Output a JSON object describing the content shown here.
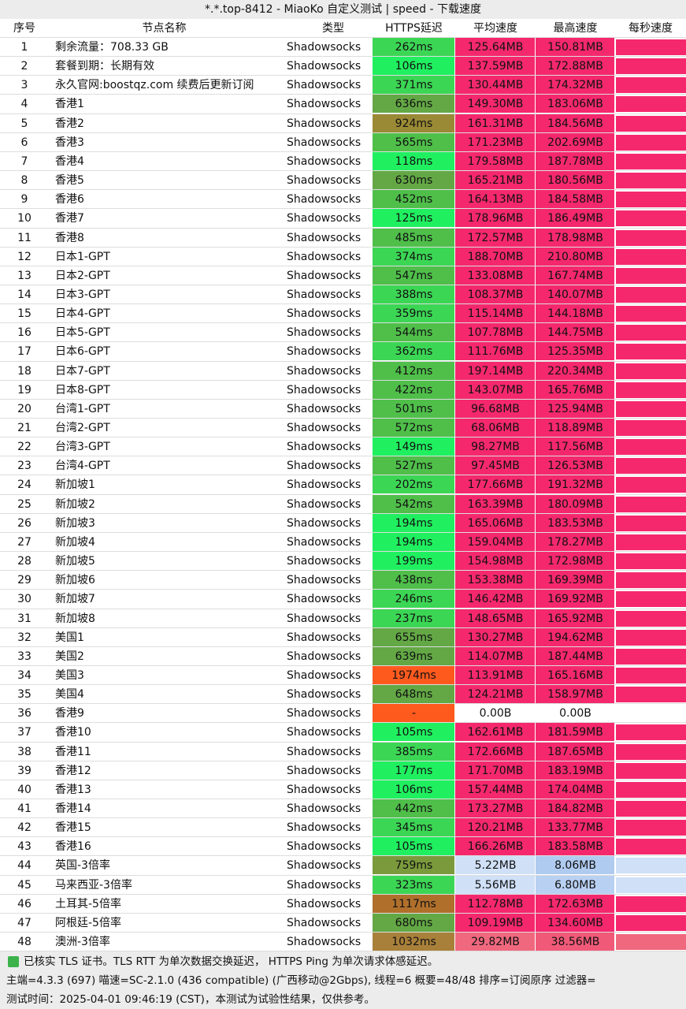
{
  "title": "*.*.top-8412 - MiaoKo 自定义测试 | speed - 下载速度",
  "table": {
    "headers": [
      "序号",
      "节点名称",
      "类型",
      "HTTPS延迟",
      "平均速度",
      "最高速度",
      "每秒速度"
    ],
    "rows": [
      {
        "cells": [
          "1",
          "剩余流量：708.33 GB",
          "Shadowsocks",
          "262ms",
          "125.64MB",
          "150.81MB"
        ],
        "bg": [
          "#3cd655",
          "#f5286e",
          "#f5286e"
        ]
      },
      {
        "cells": [
          "2",
          "套餐到期：长期有效",
          "Shadowsocks",
          "106ms",
          "137.59MB",
          "172.88MB"
        ],
        "bg": [
          "#20f060",
          "#f5286e",
          "#f5286e"
        ]
      },
      {
        "cells": [
          "3",
          "永久官网:boostqz.com 续费后更新订阅",
          "Shadowsocks",
          "371ms",
          "130.44MB",
          "174.32MB"
        ],
        "bg": [
          "#3cd655",
          "#f5286e",
          "#f5286e"
        ]
      },
      {
        "cells": [
          "4",
          "香港1",
          "Shadowsocks",
          "636ms",
          "149.30MB",
          "183.06MB"
        ],
        "bg": [
          "#63a845",
          "#f5286e",
          "#f5286e"
        ]
      },
      {
        "cells": [
          "5",
          "香港2",
          "Shadowsocks",
          "924ms",
          "161.31MB",
          "184.56MB"
        ],
        "bg": [
          "#9a8a35",
          "#f5286e",
          "#f5286e"
        ]
      },
      {
        "cells": [
          "6",
          "香港3",
          "Shadowsocks",
          "565ms",
          "171.23MB",
          "202.69MB"
        ],
        "bg": [
          "#4fbf4a",
          "#f5286e",
          "#f5286e"
        ]
      },
      {
        "cells": [
          "7",
          "香港4",
          "Shadowsocks",
          "118ms",
          "179.58MB",
          "187.78MB"
        ],
        "bg": [
          "#20f060",
          "#f5286e",
          "#f5286e"
        ]
      },
      {
        "cells": [
          "8",
          "香港5",
          "Shadowsocks",
          "630ms",
          "165.21MB",
          "180.56MB"
        ],
        "bg": [
          "#63a845",
          "#f5286e",
          "#f5286e"
        ]
      },
      {
        "cells": [
          "9",
          "香港6",
          "Shadowsocks",
          "452ms",
          "164.13MB",
          "184.58MB"
        ],
        "bg": [
          "#4fbf4a",
          "#f5286e",
          "#f5286e"
        ]
      },
      {
        "cells": [
          "10",
          "香港7",
          "Shadowsocks",
          "125ms",
          "178.96MB",
          "186.49MB"
        ],
        "bg": [
          "#20f060",
          "#f5286e",
          "#f5286e"
        ]
      },
      {
        "cells": [
          "11",
          "香港8",
          "Shadowsocks",
          "485ms",
          "172.57MB",
          "178.98MB"
        ],
        "bg": [
          "#4fbf4a",
          "#f5286e",
          "#f5286e"
        ]
      },
      {
        "cells": [
          "12",
          "日本1-GPT",
          "Shadowsocks",
          "374ms",
          "188.70MB",
          "210.80MB"
        ],
        "bg": [
          "#3cd655",
          "#f5286e",
          "#f5286e"
        ]
      },
      {
        "cells": [
          "13",
          "日本2-GPT",
          "Shadowsocks",
          "547ms",
          "133.08MB",
          "167.74MB"
        ],
        "bg": [
          "#4fbf4a",
          "#f5286e",
          "#f5286e"
        ]
      },
      {
        "cells": [
          "14",
          "日本3-GPT",
          "Shadowsocks",
          "388ms",
          "108.37MB",
          "140.07MB"
        ],
        "bg": [
          "#3cd655",
          "#f5286e",
          "#f5286e"
        ]
      },
      {
        "cells": [
          "15",
          "日本4-GPT",
          "Shadowsocks",
          "359ms",
          "115.14MB",
          "144.18MB"
        ],
        "bg": [
          "#3cd655",
          "#f5286e",
          "#f5286e"
        ]
      },
      {
        "cells": [
          "16",
          "日本5-GPT",
          "Shadowsocks",
          "544ms",
          "107.78MB",
          "144.75MB"
        ],
        "bg": [
          "#4fbf4a",
          "#f5286e",
          "#f5286e"
        ]
      },
      {
        "cells": [
          "17",
          "日本6-GPT",
          "Shadowsocks",
          "362ms",
          "111.76MB",
          "125.35MB"
        ],
        "bg": [
          "#3cd655",
          "#f5286e",
          "#f5286e"
        ]
      },
      {
        "cells": [
          "18",
          "日本7-GPT",
          "Shadowsocks",
          "412ms",
          "197.14MB",
          "220.34MB"
        ],
        "bg": [
          "#4fbf4a",
          "#f5286e",
          "#f5286e"
        ]
      },
      {
        "cells": [
          "19",
          "日本8-GPT",
          "Shadowsocks",
          "422ms",
          "143.07MB",
          "165.76MB"
        ],
        "bg": [
          "#4fbf4a",
          "#f5286e",
          "#f5286e"
        ]
      },
      {
        "cells": [
          "20",
          "台湾1-GPT",
          "Shadowsocks",
          "501ms",
          "96.68MB",
          "125.94MB"
        ],
        "bg": [
          "#4fbf4a",
          "#f5286e",
          "#f5286e"
        ]
      },
      {
        "cells": [
          "21",
          "台湾2-GPT",
          "Shadowsocks",
          "572ms",
          "68.06MB",
          "118.89MB"
        ],
        "bg": [
          "#4fbf4a",
          "#f5286e",
          "#f5286e"
        ]
      },
      {
        "cells": [
          "22",
          "台湾3-GPT",
          "Shadowsocks",
          "149ms",
          "98.27MB",
          "117.56MB"
        ],
        "bg": [
          "#20f060",
          "#f5286e",
          "#f5286e"
        ]
      },
      {
        "cells": [
          "23",
          "台湾4-GPT",
          "Shadowsocks",
          "527ms",
          "97.45MB",
          "126.53MB"
        ],
        "bg": [
          "#4fbf4a",
          "#f5286e",
          "#f5286e"
        ]
      },
      {
        "cells": [
          "24",
          "新加坡1",
          "Shadowsocks",
          "202ms",
          "177.66MB",
          "191.32MB"
        ],
        "bg": [
          "#3cd655",
          "#f5286e",
          "#f5286e"
        ]
      },
      {
        "cells": [
          "25",
          "新加坡2",
          "Shadowsocks",
          "542ms",
          "163.39MB",
          "180.09MB"
        ],
        "bg": [
          "#4fbf4a",
          "#f5286e",
          "#f5286e"
        ]
      },
      {
        "cells": [
          "26",
          "新加坡3",
          "Shadowsocks",
          "194ms",
          "165.06MB",
          "183.53MB"
        ],
        "bg": [
          "#20f060",
          "#f5286e",
          "#f5286e"
        ]
      },
      {
        "cells": [
          "27",
          "新加坡4",
          "Shadowsocks",
          "194ms",
          "159.04MB",
          "178.27MB"
        ],
        "bg": [
          "#20f060",
          "#f5286e",
          "#f5286e"
        ]
      },
      {
        "cells": [
          "28",
          "新加坡5",
          "Shadowsocks",
          "199ms",
          "154.98MB",
          "172.98MB"
        ],
        "bg": [
          "#20f060",
          "#f5286e",
          "#f5286e"
        ]
      },
      {
        "cells": [
          "29",
          "新加坡6",
          "Shadowsocks",
          "438ms",
          "153.38MB",
          "169.39MB"
        ],
        "bg": [
          "#4fbf4a",
          "#f5286e",
          "#f5286e"
        ]
      },
      {
        "cells": [
          "30",
          "新加坡7",
          "Shadowsocks",
          "246ms",
          "146.42MB",
          "169.92MB"
        ],
        "bg": [
          "#3cd655",
          "#f5286e",
          "#f5286e"
        ]
      },
      {
        "cells": [
          "31",
          "新加坡8",
          "Shadowsocks",
          "237ms",
          "148.65MB",
          "165.92MB"
        ],
        "bg": [
          "#3cd655",
          "#f5286e",
          "#f5286e"
        ]
      },
      {
        "cells": [
          "32",
          "美国1",
          "Shadowsocks",
          "655ms",
          "130.27MB",
          "194.62MB"
        ],
        "bg": [
          "#63a845",
          "#f5286e",
          "#f5286e"
        ]
      },
      {
        "cells": [
          "33",
          "美国2",
          "Shadowsocks",
          "639ms",
          "114.07MB",
          "187.44MB"
        ],
        "bg": [
          "#63a845",
          "#f5286e",
          "#f5286e"
        ]
      },
      {
        "cells": [
          "34",
          "美国3",
          "Shadowsocks",
          "1974ms",
          "113.91MB",
          "165.16MB"
        ],
        "bg": [
          "#ff5a1e",
          "#f5286e",
          "#f5286e"
        ]
      },
      {
        "cells": [
          "35",
          "美国4",
          "Shadowsocks",
          "648ms",
          "124.21MB",
          "158.97MB"
        ],
        "bg": [
          "#63a845",
          "#f5286e",
          "#f5286e"
        ]
      },
      {
        "cells": [
          "36",
          "香港9",
          "Shadowsocks",
          "-",
          "0.00B",
          "0.00B"
        ],
        "bg": [
          "#ff5a1e",
          "#ffffff",
          "#ffffff"
        ]
      },
      {
        "cells": [
          "37",
          "香港10",
          "Shadowsocks",
          "105ms",
          "162.61MB",
          "181.59MB"
        ],
        "bg": [
          "#20f060",
          "#f5286e",
          "#f5286e"
        ]
      },
      {
        "cells": [
          "38",
          "香港11",
          "Shadowsocks",
          "385ms",
          "172.66MB",
          "187.65MB"
        ],
        "bg": [
          "#3cd655",
          "#f5286e",
          "#f5286e"
        ]
      },
      {
        "cells": [
          "39",
          "香港12",
          "Shadowsocks",
          "177ms",
          "171.70MB",
          "183.19MB"
        ],
        "bg": [
          "#20f060",
          "#f5286e",
          "#f5286e"
        ]
      },
      {
        "cells": [
          "40",
          "香港13",
          "Shadowsocks",
          "106ms",
          "157.44MB",
          "174.04MB"
        ],
        "bg": [
          "#20f060",
          "#f5286e",
          "#f5286e"
        ]
      },
      {
        "cells": [
          "41",
          "香港14",
          "Shadowsocks",
          "442ms",
          "173.27MB",
          "184.82MB"
        ],
        "bg": [
          "#4fbf4a",
          "#f5286e",
          "#f5286e"
        ]
      },
      {
        "cells": [
          "42",
          "香港15",
          "Shadowsocks",
          "345ms",
          "120.21MB",
          "133.77MB"
        ],
        "bg": [
          "#3cd655",
          "#f5286e",
          "#f5286e"
        ]
      },
      {
        "cells": [
          "43",
          "香港16",
          "Shadowsocks",
          "105ms",
          "166.26MB",
          "183.58MB"
        ],
        "bg": [
          "#20f060",
          "#f5286e",
          "#f5286e"
        ]
      },
      {
        "cells": [
          "44",
          "英国-3倍率",
          "Shadowsocks",
          "759ms",
          "5.22MB",
          "8.06MB"
        ],
        "bg": [
          "#7a9a3c",
          "#cfe0f7",
          "#b0cbf0"
        ]
      },
      {
        "cells": [
          "45",
          "马来西亚-3倍率",
          "Shadowsocks",
          "323ms",
          "5.56MB",
          "6.80MB"
        ],
        "bg": [
          "#3cd655",
          "#cfe0f7",
          "#b8d0f2"
        ]
      },
      {
        "cells": [
          "46",
          "土耳其-5倍率",
          "Shadowsocks",
          "1117ms",
          "112.78MB",
          "172.63MB"
        ],
        "bg": [
          "#b0702c",
          "#f5286e",
          "#f5286e"
        ]
      },
      {
        "cells": [
          "47",
          "阿根廷-5倍率",
          "Shadowsocks",
          "680ms",
          "109.19MB",
          "134.60MB"
        ],
        "bg": [
          "#63a845",
          "#f5286e",
          "#f5286e"
        ]
      },
      {
        "cells": [
          "48",
          "澳洲-3倍率",
          "Shadowsocks",
          "1032ms",
          "29.82MB",
          "38.56MB"
        ],
        "bg": [
          "#a8803a",
          "#f0687e",
          "#f05a78"
        ]
      }
    ]
  },
  "footer": [
    "已核实 TLS 证书。TLS RTT 为单次数据交换延迟， HTTPS Ping 为单次请求体感延迟。",
    "主端=4.3.3 (697) 喵速=SC-2.1.0 (436 compatible) (广西移动@2Gbps), 线程=6 概要=48/48 排序=订阅原序 过滤器=",
    "测试时间：2025-04-01 09:46:19 (CST)，本测试为试验性结果，仅供参考。"
  ]
}
